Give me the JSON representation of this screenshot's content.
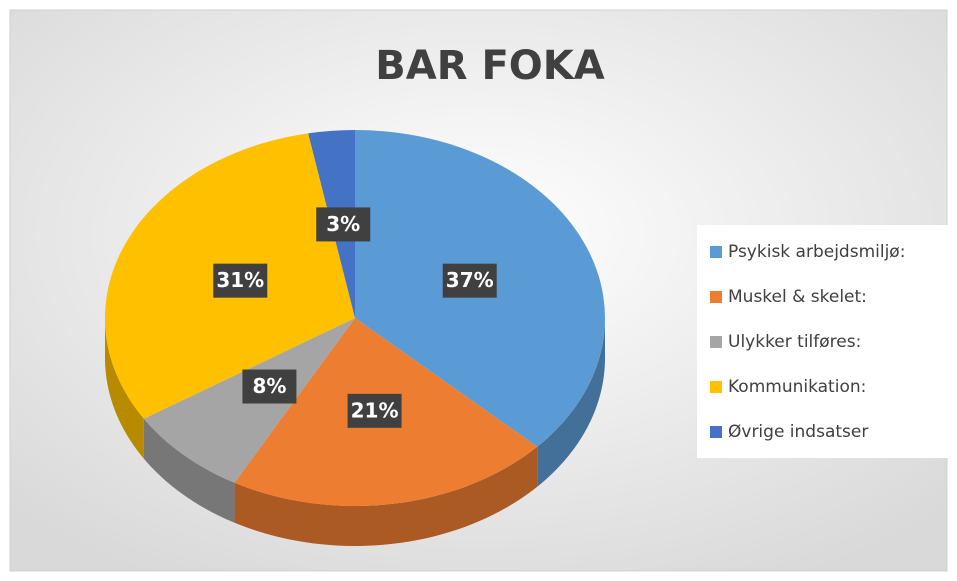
{
  "chart_data": {
    "type": "pie",
    "title": "BAR FOKA",
    "categories": [
      "Psykisk arbejdsmiljø:",
      "Muskel & skelet:",
      "Ulykker tilføres:",
      "Kommunikation:",
      "Øvrige indsatser"
    ],
    "values": [
      37,
      21,
      8,
      31,
      3
    ],
    "value_labels": [
      "37%",
      "21%",
      "8%",
      "31%",
      "3%"
    ],
    "colors": [
      "#5b9bd5",
      "#ed7d31",
      "#a5a5a5",
      "#ffc000",
      "#4472c4"
    ],
    "legend": "right"
  }
}
